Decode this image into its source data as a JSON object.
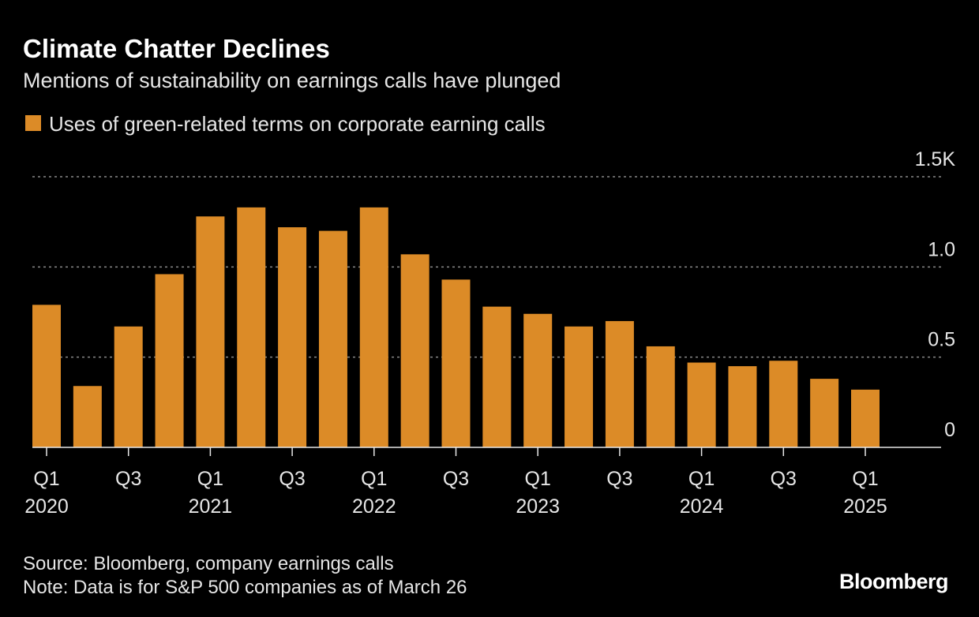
{
  "chart_data": {
    "type": "bar",
    "title": "Climate Chatter Declines",
    "subtitle": "Mentions of sustainability on earnings calls have plunged",
    "categories": [
      "Q1",
      null,
      "Q3",
      null,
      "Q1",
      null,
      "Q3",
      null,
      "Q1",
      null,
      "Q3",
      null,
      "Q1",
      null,
      "Q3",
      null,
      "Q1",
      null,
      "Q3",
      null,
      "Q1"
    ],
    "years": [
      "2020",
      null,
      null,
      null,
      "2021",
      null,
      null,
      null,
      "2022",
      null,
      null,
      null,
      "2023",
      null,
      null,
      null,
      "2024",
      null,
      null,
      null,
      "2025"
    ],
    "series": [
      {
        "name": "Uses of green-related terms on corporate earning calls",
        "color": "#dc8b27",
        "values": [
          0.79,
          0.34,
          0.67,
          0.96,
          1.28,
          1.33,
          1.22,
          1.2,
          1.33,
          1.07,
          0.93,
          0.78,
          0.74,
          0.67,
          0.7,
          0.56,
          0.47,
          0.45,
          0.48,
          0.38,
          0.32
        ]
      }
    ],
    "ylim": [
      0,
      1.5
    ],
    "yticks": [
      0,
      0.5,
      {
        "value": 1.0,
        "label": "1.0"
      },
      {
        "value": 1.5,
        "label": "1.5K"
      }
    ],
    "grid": true,
    "source": "Source: Bloomberg, company earnings calls",
    "note": "Note: Data is for S&P 500 companies as of March 26",
    "brand": "Bloomberg"
  }
}
